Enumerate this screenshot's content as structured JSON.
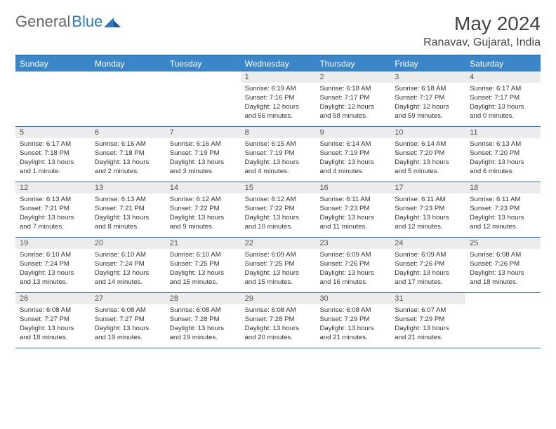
{
  "logo": {
    "text1": "General",
    "text2": "Blue"
  },
  "title": "May 2024",
  "location": "Ranavav, Gujarat, India",
  "colors": {
    "header_bg": "#3b86c8",
    "rule": "#2f79b9",
    "daynum_bg": "#ececec",
    "text": "#333333"
  },
  "fonts": {
    "title_size": 28,
    "location_size": 16,
    "dayhead_size": 12,
    "daynum_size": 11,
    "info_size": 9.6
  },
  "day_headers": [
    "Sunday",
    "Monday",
    "Tuesday",
    "Wednesday",
    "Thursday",
    "Friday",
    "Saturday"
  ],
  "weeks": [
    [
      {
        "day": "",
        "sunrise": "",
        "sunset": "",
        "daylight1": "",
        "daylight2": ""
      },
      {
        "day": "",
        "sunrise": "",
        "sunset": "",
        "daylight1": "",
        "daylight2": ""
      },
      {
        "day": "",
        "sunrise": "",
        "sunset": "",
        "daylight1": "",
        "daylight2": ""
      },
      {
        "day": "1",
        "sunrise": "Sunrise: 6:19 AM",
        "sunset": "Sunset: 7:16 PM",
        "daylight1": "Daylight: 12 hours",
        "daylight2": "and 56 minutes."
      },
      {
        "day": "2",
        "sunrise": "Sunrise: 6:18 AM",
        "sunset": "Sunset: 7:17 PM",
        "daylight1": "Daylight: 12 hours",
        "daylight2": "and 58 minutes."
      },
      {
        "day": "3",
        "sunrise": "Sunrise: 6:18 AM",
        "sunset": "Sunset: 7:17 PM",
        "daylight1": "Daylight: 12 hours",
        "daylight2": "and 59 minutes."
      },
      {
        "day": "4",
        "sunrise": "Sunrise: 6:17 AM",
        "sunset": "Sunset: 7:17 PM",
        "daylight1": "Daylight: 13 hours",
        "daylight2": "and 0 minutes."
      }
    ],
    [
      {
        "day": "5",
        "sunrise": "Sunrise: 6:17 AM",
        "sunset": "Sunset: 7:18 PM",
        "daylight1": "Daylight: 13 hours",
        "daylight2": "and 1 minute."
      },
      {
        "day": "6",
        "sunrise": "Sunrise: 6:16 AM",
        "sunset": "Sunset: 7:18 PM",
        "daylight1": "Daylight: 13 hours",
        "daylight2": "and 2 minutes."
      },
      {
        "day": "7",
        "sunrise": "Sunrise: 6:16 AM",
        "sunset": "Sunset: 7:19 PM",
        "daylight1": "Daylight: 13 hours",
        "daylight2": "and 3 minutes."
      },
      {
        "day": "8",
        "sunrise": "Sunrise: 6:15 AM",
        "sunset": "Sunset: 7:19 PM",
        "daylight1": "Daylight: 13 hours",
        "daylight2": "and 4 minutes."
      },
      {
        "day": "9",
        "sunrise": "Sunrise: 6:14 AM",
        "sunset": "Sunset: 7:19 PM",
        "daylight1": "Daylight: 13 hours",
        "daylight2": "and 4 minutes."
      },
      {
        "day": "10",
        "sunrise": "Sunrise: 6:14 AM",
        "sunset": "Sunset: 7:20 PM",
        "daylight1": "Daylight: 13 hours",
        "daylight2": "and 5 minutes."
      },
      {
        "day": "11",
        "sunrise": "Sunrise: 6:13 AM",
        "sunset": "Sunset: 7:20 PM",
        "daylight1": "Daylight: 13 hours",
        "daylight2": "and 6 minutes."
      }
    ],
    [
      {
        "day": "12",
        "sunrise": "Sunrise: 6:13 AM",
        "sunset": "Sunset: 7:21 PM",
        "daylight1": "Daylight: 13 hours",
        "daylight2": "and 7 minutes."
      },
      {
        "day": "13",
        "sunrise": "Sunrise: 6:13 AM",
        "sunset": "Sunset: 7:21 PM",
        "daylight1": "Daylight: 13 hours",
        "daylight2": "and 8 minutes."
      },
      {
        "day": "14",
        "sunrise": "Sunrise: 6:12 AM",
        "sunset": "Sunset: 7:22 PM",
        "daylight1": "Daylight: 13 hours",
        "daylight2": "and 9 minutes."
      },
      {
        "day": "15",
        "sunrise": "Sunrise: 6:12 AM",
        "sunset": "Sunset: 7:22 PM",
        "daylight1": "Daylight: 13 hours",
        "daylight2": "and 10 minutes."
      },
      {
        "day": "16",
        "sunrise": "Sunrise: 6:11 AM",
        "sunset": "Sunset: 7:23 PM",
        "daylight1": "Daylight: 13 hours",
        "daylight2": "and 11 minutes."
      },
      {
        "day": "17",
        "sunrise": "Sunrise: 6:11 AM",
        "sunset": "Sunset: 7:23 PM",
        "daylight1": "Daylight: 13 hours",
        "daylight2": "and 12 minutes."
      },
      {
        "day": "18",
        "sunrise": "Sunrise: 6:11 AM",
        "sunset": "Sunset: 7:23 PM",
        "daylight1": "Daylight: 13 hours",
        "daylight2": "and 12 minutes."
      }
    ],
    [
      {
        "day": "19",
        "sunrise": "Sunrise: 6:10 AM",
        "sunset": "Sunset: 7:24 PM",
        "daylight1": "Daylight: 13 hours",
        "daylight2": "and 13 minutes."
      },
      {
        "day": "20",
        "sunrise": "Sunrise: 6:10 AM",
        "sunset": "Sunset: 7:24 PM",
        "daylight1": "Daylight: 13 hours",
        "daylight2": "and 14 minutes."
      },
      {
        "day": "21",
        "sunrise": "Sunrise: 6:10 AM",
        "sunset": "Sunset: 7:25 PM",
        "daylight1": "Daylight: 13 hours",
        "daylight2": "and 15 minutes."
      },
      {
        "day": "22",
        "sunrise": "Sunrise: 6:09 AM",
        "sunset": "Sunset: 7:25 PM",
        "daylight1": "Daylight: 13 hours",
        "daylight2": "and 15 minutes."
      },
      {
        "day": "23",
        "sunrise": "Sunrise: 6:09 AM",
        "sunset": "Sunset: 7:26 PM",
        "daylight1": "Daylight: 13 hours",
        "daylight2": "and 16 minutes."
      },
      {
        "day": "24",
        "sunrise": "Sunrise: 6:09 AM",
        "sunset": "Sunset: 7:26 PM",
        "daylight1": "Daylight: 13 hours",
        "daylight2": "and 17 minutes."
      },
      {
        "day": "25",
        "sunrise": "Sunrise: 6:08 AM",
        "sunset": "Sunset: 7:26 PM",
        "daylight1": "Daylight: 13 hours",
        "daylight2": "and 18 minutes."
      }
    ],
    [
      {
        "day": "26",
        "sunrise": "Sunrise: 6:08 AM",
        "sunset": "Sunset: 7:27 PM",
        "daylight1": "Daylight: 13 hours",
        "daylight2": "and 18 minutes."
      },
      {
        "day": "27",
        "sunrise": "Sunrise: 6:08 AM",
        "sunset": "Sunset: 7:27 PM",
        "daylight1": "Daylight: 13 hours",
        "daylight2": "and 19 minutes."
      },
      {
        "day": "28",
        "sunrise": "Sunrise: 6:08 AM",
        "sunset": "Sunset: 7:28 PM",
        "daylight1": "Daylight: 13 hours",
        "daylight2": "and 19 minutes."
      },
      {
        "day": "29",
        "sunrise": "Sunrise: 6:08 AM",
        "sunset": "Sunset: 7:28 PM",
        "daylight1": "Daylight: 13 hours",
        "daylight2": "and 20 minutes."
      },
      {
        "day": "30",
        "sunrise": "Sunrise: 6:08 AM",
        "sunset": "Sunset: 7:29 PM",
        "daylight1": "Daylight: 13 hours",
        "daylight2": "and 21 minutes."
      },
      {
        "day": "31",
        "sunrise": "Sunrise: 6:07 AM",
        "sunset": "Sunset: 7:29 PM",
        "daylight1": "Daylight: 13 hours",
        "daylight2": "and 21 minutes."
      },
      {
        "day": "",
        "sunrise": "",
        "sunset": "",
        "daylight1": "",
        "daylight2": ""
      }
    ]
  ]
}
